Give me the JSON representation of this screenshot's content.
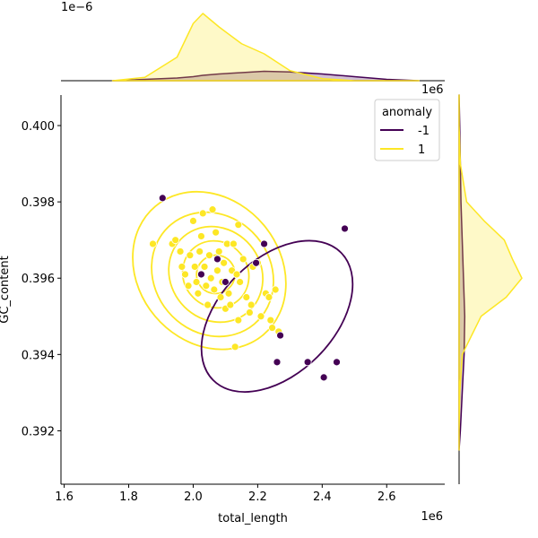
{
  "chart_data": {
    "type": "scatter",
    "title": "",
    "xlabel": "total_length",
    "ylabel": "GC_content",
    "x_offset_label": "1e6",
    "y_offset_label": "",
    "marginal_x_offset_label": "1e−6",
    "marginal_y_offset_label": "1e6",
    "xlim": [
      1.59,
      2.78
    ],
    "ylim": [
      0.3906,
      0.4008
    ],
    "xticks": [
      1.6,
      1.8,
      2.0,
      2.2,
      2.4,
      2.6
    ],
    "yticks": [
      0.392,
      0.394,
      0.396,
      0.398,
      0.4
    ],
    "xtick_labels": [
      "1.6",
      "1.8",
      "2.0",
      "2.2",
      "2.4",
      "2.6"
    ],
    "ytick_labels": [
      "0.392",
      "0.394",
      "0.396",
      "0.398",
      "0.400"
    ],
    "grid": false,
    "legend": {
      "title": "anomaly",
      "placement": "top-right",
      "entries": [
        {
          "label": "-1",
          "color": "#440154"
        },
        {
          "label": "1",
          "color": "#fde725"
        }
      ]
    },
    "series": [
      {
        "name": "-1",
        "color": "#440154",
        "points": [
          [
            1.905,
            0.3981
          ],
          [
            2.075,
            0.3965
          ],
          [
            2.025,
            0.3961
          ],
          [
            2.1,
            0.3959
          ],
          [
            2.22,
            0.3969
          ],
          [
            2.195,
            0.3964
          ],
          [
            2.27,
            0.3945
          ],
          [
            2.26,
            0.3938
          ],
          [
            2.355,
            0.3938
          ],
          [
            2.405,
            0.3934
          ],
          [
            2.445,
            0.3938
          ],
          [
            2.47,
            0.3973
          ]
        ]
      },
      {
        "name": "1",
        "color": "#fde725",
        "points": [
          [
            1.875,
            0.3969
          ],
          [
            1.935,
            0.3969
          ],
          [
            1.945,
            0.397
          ],
          [
            1.96,
            0.3967
          ],
          [
            1.965,
            0.3963
          ],
          [
            1.975,
            0.3961
          ],
          [
            1.985,
            0.3958
          ],
          [
            1.99,
            0.3966
          ],
          [
            2.0,
            0.3975
          ],
          [
            2.005,
            0.3963
          ],
          [
            2.01,
            0.3959
          ],
          [
            2.015,
            0.3956
          ],
          [
            2.02,
            0.3967
          ],
          [
            2.025,
            0.3971
          ],
          [
            2.03,
            0.3977
          ],
          [
            2.035,
            0.3963
          ],
          [
            2.04,
            0.3958
          ],
          [
            2.045,
            0.3953
          ],
          [
            2.05,
            0.3966
          ],
          [
            2.055,
            0.396
          ],
          [
            2.06,
            0.3978
          ],
          [
            2.065,
            0.3957
          ],
          [
            2.07,
            0.3972
          ],
          [
            2.075,
            0.3962
          ],
          [
            2.08,
            0.3967
          ],
          [
            2.085,
            0.3955
          ],
          [
            2.09,
            0.3959
          ],
          [
            2.095,
            0.3964
          ],
          [
            2.1,
            0.3952
          ],
          [
            2.105,
            0.3969
          ],
          [
            2.11,
            0.3956
          ],
          [
            2.115,
            0.3953
          ],
          [
            2.12,
            0.3962
          ],
          [
            2.125,
            0.3969
          ],
          [
            2.13,
            0.3942
          ],
          [
            2.135,
            0.3961
          ],
          [
            2.14,
            0.3974
          ],
          [
            2.145,
            0.3959
          ],
          [
            2.155,
            0.3965
          ],
          [
            2.165,
            0.3955
          ],
          [
            2.175,
            0.3951
          ],
          [
            2.18,
            0.3953
          ],
          [
            2.185,
            0.3963
          ],
          [
            2.2,
            0.3964
          ],
          [
            2.21,
            0.395
          ],
          [
            2.225,
            0.3956
          ],
          [
            2.235,
            0.3955
          ],
          [
            2.24,
            0.3949
          ],
          [
            2.245,
            0.3947
          ],
          [
            2.255,
            0.3957
          ],
          [
            2.265,
            0.3946
          ],
          [
            2.14,
            0.3949
          ]
        ]
      }
    ],
    "marginal_x": {
      "x": [
        1.75,
        1.85,
        1.95,
        2.0,
        2.03,
        2.08,
        2.15,
        2.22,
        2.3,
        2.4,
        2.5,
        2.6,
        2.7
      ],
      "series": [
        {
          "name": "-1",
          "density": [
            0.0,
            0.02,
            0.04,
            0.06,
            0.08,
            0.1,
            0.12,
            0.14,
            0.13,
            0.1,
            0.06,
            0.02,
            0.0
          ]
        },
        {
          "name": "1",
          "density": [
            0.0,
            0.05,
            0.35,
            0.85,
            1.0,
            0.8,
            0.55,
            0.4,
            0.15,
            0.03,
            0.0,
            0.0,
            0.0
          ]
        }
      ]
    },
    "marginal_y": {
      "y": [
        0.3915,
        0.392,
        0.393,
        0.394,
        0.395,
        0.3955,
        0.396,
        0.3965,
        0.397,
        0.3975,
        0.398,
        0.399,
        0.4,
        0.4008
      ],
      "series": [
        {
          "name": "-1",
          "density": [
            0.0,
            0.02,
            0.05,
            0.08,
            0.09,
            0.08,
            0.07,
            0.06,
            0.05,
            0.04,
            0.03,
            0.02,
            0.01,
            0.0
          ]
        },
        {
          "name": "1",
          "density": [
            0.0,
            0.0,
            0.01,
            0.05,
            0.35,
            0.75,
            1.0,
            0.85,
            0.72,
            0.4,
            0.12,
            0.02,
            0.0,
            0.0
          ]
        }
      ]
    },
    "contours": [
      {
        "name": "1",
        "color": "#fde725",
        "levels": [
          {
            "cx": 2.05,
            "cy": 0.3962,
            "rx": 0.22,
            "ry": 0.0022,
            "angle": -40
          },
          {
            "cx": 2.06,
            "cy": 0.3961,
            "rx": 0.18,
            "ry": 0.0017,
            "angle": -40
          },
          {
            "cx": 2.07,
            "cy": 0.3961,
            "rx": 0.14,
            "ry": 0.0013,
            "angle": -40
          },
          {
            "cx": 2.07,
            "cy": 0.3961,
            "rx": 0.1,
            "ry": 0.0009,
            "angle": -40
          },
          {
            "cx": 2.07,
            "cy": 0.3961,
            "rx": 0.06,
            "ry": 0.0005,
            "angle": -40
          }
        ]
      },
      {
        "name": "-1",
        "color": "#440154",
        "levels": [
          {
            "cx": 2.26,
            "cy": 0.395,
            "rx": 0.28,
            "ry": 0.0015,
            "angle": -45
          }
        ]
      }
    ]
  }
}
